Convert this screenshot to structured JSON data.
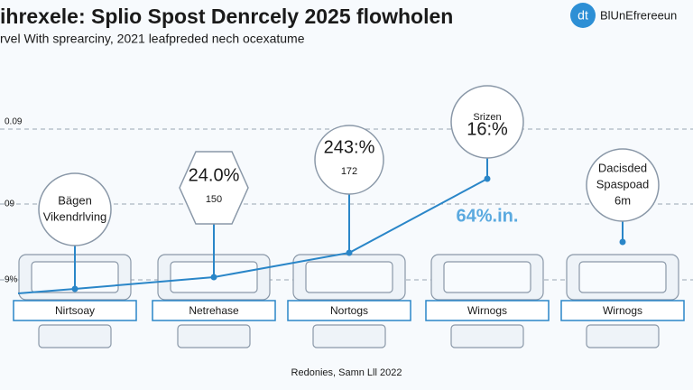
{
  "header": {
    "title": "ihrexele: Splio Spost Denrcely 2025 flowholen",
    "subtitle": "rvel With sprearciny, 2021 leafpreded nech ocexatume",
    "logo_mark": "dt",
    "logo_text": "BlUnEfrereeun"
  },
  "axis_labels": [
    "0.09",
    "09",
    "9%"
  ],
  "callouts": [
    {
      "lines": [
        "Bägen",
        "Vikendrlving"
      ]
    },
    {
      "lines": [
        "24.0%",
        "150"
      ]
    },
    {
      "lines": [
        "243:%",
        "172"
      ]
    },
    {
      "lines": [
        "Srizen",
        "16:%"
      ]
    },
    {
      "lines": [
        "Dacisded",
        "Spaspoad",
        "6m"
      ]
    }
  ],
  "floating_label": "64%.in.",
  "stages": [
    "Nirtsoay",
    "Netrehase",
    "Nortogs",
    "Wirnogs",
    "Wirnogs"
  ],
  "footer": "Redonies, Samn Lll 2022"
}
